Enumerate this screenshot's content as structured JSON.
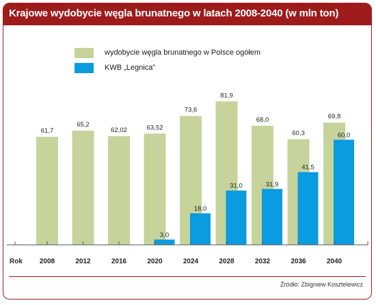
{
  "chart_data": {
    "type": "bar",
    "title": "Krajowe wydobycie węgla brunatnego w latach 2008-2040 (w mln ton)",
    "xlabel": "Rok",
    "ylabel": "",
    "ylim": [
      0,
      90
    ],
    "categories": [
      "2008",
      "2012",
      "2016",
      "2020",
      "2024",
      "2028",
      "2032",
      "2036",
      "2040"
    ],
    "series": [
      {
        "name": "wydobycie węgla brunatnego w Polsce ogółem",
        "color": "#c6d49c",
        "values": [
          61.7,
          65.2,
          62.02,
          63.52,
          73.6,
          81.9,
          68.0,
          60.3,
          69.8
        ],
        "labels": [
          "61,7",
          "65,2",
          "62,02",
          "63,52",
          "73,6",
          "81,9",
          "68,0",
          "60,3",
          "69,8"
        ]
      },
      {
        "name": "KWB „Legnica”",
        "color": "#0a9be0",
        "values": [
          null,
          null,
          null,
          3.0,
          18.0,
          31.0,
          31.9,
          41.5,
          60.0
        ],
        "labels": [
          "",
          "",
          "",
          "3,0",
          "18,0",
          "31,0",
          "31,9",
          "41,5",
          "60,0"
        ]
      }
    ],
    "grid": false,
    "legend": "top-left"
  },
  "source": "Źródło: Zbigniew Kosztelewicz",
  "colors": {
    "title_bg": "#9e1b1b",
    "axis": "#555555"
  }
}
